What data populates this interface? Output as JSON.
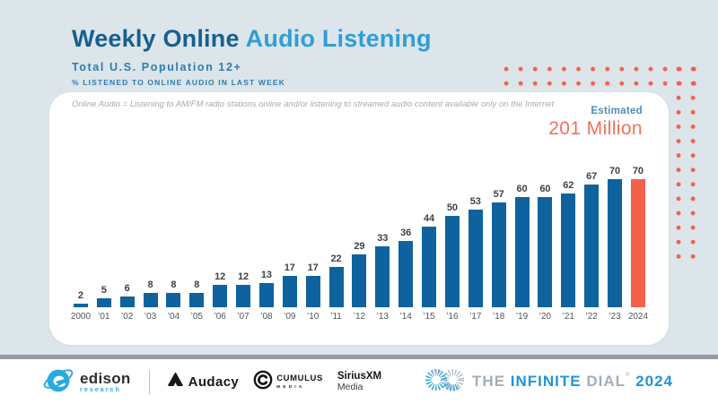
{
  "header": {
    "title_part1": "Weekly Online",
    "title_part2": "Audio Listening",
    "subtitle": "Total U.S. Population 12+",
    "tagline": "% LISTENED TO ONLINE AUDIO IN LAST WEEK"
  },
  "card": {
    "note": "Online Audio = Listening to AM/FM radio stations online and/or listening to streamed audio content available only on the Internet",
    "estimated_label": "Estimated",
    "estimated_value": "201 Million"
  },
  "chart_data": {
    "type": "bar",
    "title": "Weekly Online Audio Listening",
    "subtitle": "Total U.S. Population 12+",
    "ylabel": "% listened to online audio in last week",
    "categories": [
      "2000",
      "’01",
      "’02",
      "’03",
      "’04",
      "’05",
      "’06",
      "’07",
      "’08",
      "’09",
      "’10",
      "’11",
      "’12",
      "’13",
      "’14",
      "’15",
      "’16",
      "’17",
      "’18",
      "’19",
      "’20",
      "’21",
      "’22",
      "’23",
      "2024"
    ],
    "values": [
      2,
      5,
      6,
      8,
      8,
      8,
      12,
      12,
      13,
      17,
      17,
      22,
      29,
      33,
      36,
      44,
      50,
      53,
      57,
      60,
      60,
      62,
      67,
      70,
      70
    ],
    "ylim": [
      0,
      75
    ],
    "grid": false,
    "data_labels": true,
    "legend": "none",
    "bar_color": "#0e639e",
    "highlight_index": 24,
    "highlight_color": "#f4604a",
    "annotation": {
      "label": "Estimated",
      "value": "201 Million"
    }
  },
  "colors": {
    "background": "#dce5ea",
    "card": "#ffffff",
    "title_dark": "#15608f",
    "title_light": "#2f9ed8",
    "subtitle_blue": "#2b7db1",
    "bar_blue": "#0e639e",
    "accent_coral": "#f4604a",
    "estimated_blue": "#4c8cbe",
    "dot_pattern": "#f4604a"
  },
  "footer": {
    "edison_name": "edison",
    "edison_sub": "research",
    "audacy": "Audacy",
    "cumulus_line1": "CUMULUS",
    "cumulus_line2": "MEDIA",
    "siriusxm_line1": "SiriusXM",
    "siriusxm_line2": "Media",
    "dial_the": "THE",
    "dial_infinite": "INFINITE",
    "dial_dial": "DIAL",
    "dial_reg": "®",
    "dial_year": "2024"
  }
}
